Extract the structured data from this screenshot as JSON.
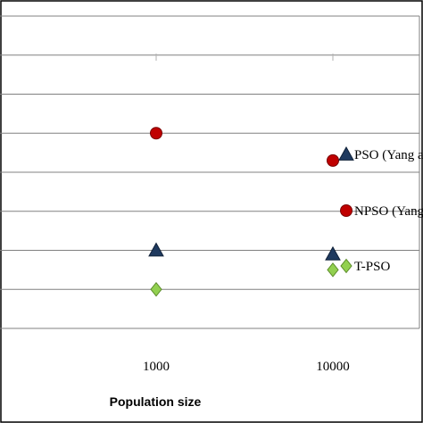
{
  "chart_data": {
    "type": "scatter",
    "x_scale": "log",
    "x_ticks": [
      "1000",
      "10000"
    ],
    "xlabel": "Population size",
    "ylabel": "",
    "grid": true,
    "legend_position": "right",
    "series": [
      {
        "name": "PSO (Yang a",
        "marker": "triangle",
        "color": "#1f3a5f",
        "points": [
          {
            "x": 1000,
            "y": 2
          },
          {
            "x": 10000,
            "y": 1.9
          }
        ]
      },
      {
        "name": "NPSO (Yang",
        "marker": "circle",
        "color": "#c00000",
        "points": [
          {
            "x": 1000,
            "y": 5
          },
          {
            "x": 10000,
            "y": 4.3
          }
        ]
      },
      {
        "name": "T-PSO",
        "marker": "diamond",
        "color": "#92d050",
        "points": [
          {
            "x": 1000,
            "y": 1
          },
          {
            "x": 10000,
            "y": 1.5
          }
        ]
      }
    ],
    "ylim": [
      0,
      8
    ]
  }
}
